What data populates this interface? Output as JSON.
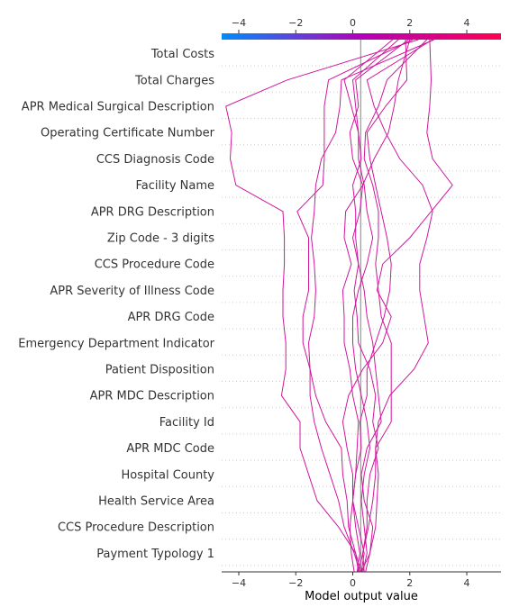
{
  "chart_data": {
    "type": "line",
    "subtype": "decision-plot",
    "xlabel": "Model output value",
    "xlim": [
      -4.6,
      5.2
    ],
    "xticks": [
      -4,
      -2,
      0,
      2,
      4
    ],
    "xtick_labels": [
      "−4",
      "−2",
      "0",
      "2",
      "4"
    ],
    "base_value": 0.28,
    "colorbar": {
      "from": "#008bfb",
      "mid": "#b200b8",
      "to": "#ff0052"
    },
    "line_color": "#d0179c",
    "features": [
      "Total Costs",
      "Total Charges",
      "APR Medical Surgical Description",
      "Operating Certificate Number",
      "CCS Diagnosis Code",
      "Facility Name",
      "APR DRG Description",
      "Zip Code - 3 digits",
      "CCS Procedure Code",
      "APR Severity of Illness Code",
      "APR DRG Code",
      "Emergency Department Indicator",
      "Patient Disposition",
      "APR MDC Description",
      "Facility Id",
      "APR MDC Code",
      "Hospital County",
      "Health Service Area",
      "CCS Procedure Description",
      "Payment Typology 1"
    ],
    "series": [
      {
        "values": [
          0.2,
          0.35,
          0.5,
          0.5,
          0.6,
          0.9,
          0.7,
          0.8,
          0.6,
          0.2,
          0.15,
          0.05,
          0.2,
          0.0,
          0.25,
          0.35,
          0.0,
          -0.1,
          0.2,
          0.1,
          1.95
        ]
      },
      {
        "values": [
          0.3,
          0.6,
          0.7,
          0.4,
          0.3,
          0.5,
          1.0,
          0.9,
          0.8,
          0.7,
          0.5,
          0.4,
          0.2,
          0.1,
          0.1,
          0.0,
          0.3,
          0.2,
          0.1,
          0.0,
          1.6
        ]
      },
      {
        "values": [
          0.35,
          0.5,
          0.4,
          0.3,
          0.4,
          0.6,
          0.5,
          0.3,
          0.1,
          0.0,
          0.0,
          0.2,
          0.5,
          0.7,
          0.5,
          0.4,
          0.2,
          0.2,
          -0.05,
          -0.3,
          1.4
        ]
      },
      {
        "values": [
          0.4,
          0.35,
          0.55,
          0.7,
          0.8,
          0.8,
          1.35,
          1.35,
          1.35,
          1.35,
          1.0,
          0.9,
          0.8,
          0.9,
          0.9,
          0.7,
          0.4,
          0.45,
          0.9,
          1.2,
          2.6
        ]
      },
      {
        "values": [
          0.45,
          0.6,
          0.8,
          0.85,
          0.9,
          0.8,
          0.9,
          1.3,
          2.15,
          2.65,
          2.5,
          2.35,
          2.35,
          2.6,
          2.8,
          2.45,
          1.65,
          1.15,
          0.75,
          0.5,
          2.8
        ]
      },
      {
        "values": [
          0.3,
          0.4,
          0.2,
          0.0,
          0.1,
          0.3,
          0.25,
          0.5,
          0.5,
          0.8,
          1.1,
          1.3,
          1.35,
          1.2,
          1.0,
          0.8,
          0.6,
          0.5,
          1.15,
          1.9,
          1.85
        ]
      },
      {
        "values": [
          0.15,
          0.25,
          0.1,
          0.0,
          0.1,
          0.15,
          0.2,
          0.0,
          -0.1,
          -0.3,
          -0.3,
          -0.35,
          -0.05,
          -0.3,
          -0.25,
          0.35,
          0.75,
          1.25,
          1.45,
          1.6,
          2.0
        ]
      },
      {
        "values": [
          0.05,
          -0.05,
          -0.1,
          0.0,
          0.0,
          -0.2,
          -0.35,
          -0.15,
          0.35,
          1.05,
          1.35,
          0.85,
          1.05,
          2.0,
          2.75,
          3.5,
          2.8,
          2.6,
          2.7,
          2.75,
          2.7
        ]
      },
      {
        "values": [
          0.2,
          0.1,
          -0.15,
          -0.2,
          -0.35,
          -0.4,
          -0.95,
          -1.3,
          -1.5,
          -1.55,
          -1.35,
          -1.3,
          -1.35,
          -1.45,
          -1.35,
          -1.3,
          -1.1,
          -0.6,
          -0.45,
          -0.4,
          2.85
        ]
      },
      {
        "values": [
          0.25,
          0.05,
          -0.3,
          -0.5,
          -0.8,
          -1.1,
          -1.35,
          -1.5,
          -1.5,
          -1.75,
          -1.75,
          -1.55,
          -1.55,
          -1.55,
          -1.95,
          -1.05,
          -1.0,
          -1.0,
          -1.0,
          -0.85,
          2.1
        ]
      },
      {
        "values": [
          0.3,
          0.1,
          -0.5,
          -1.25,
          -1.55,
          -1.85,
          -1.85,
          -2.5,
          -2.35,
          -2.35,
          -2.45,
          -2.45,
          -2.4,
          -2.4,
          -2.45,
          -4.1,
          -4.3,
          -4.25,
          -4.45,
          -2.3,
          2.3
        ]
      }
    ]
  }
}
